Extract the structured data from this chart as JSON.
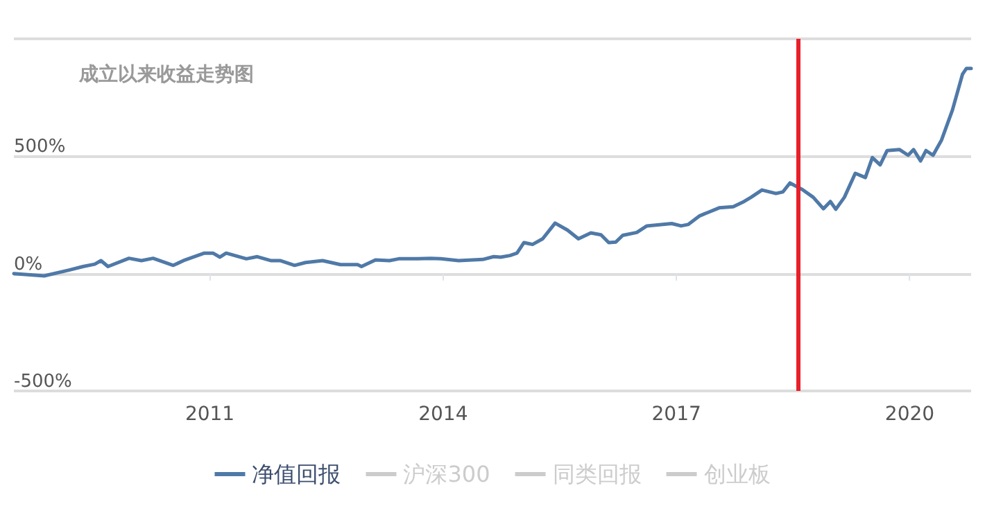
{
  "chart_data": {
    "type": "line",
    "title": "成立以来收益走势图",
    "x": [
      2008.48,
      2008.87,
      2009.19,
      2009.37,
      2009.52,
      2009.6,
      2009.69,
      2009.96,
      2010.12,
      2010.27,
      2010.53,
      2010.68,
      2010.93,
      2011.04,
      2011.13,
      2011.21,
      2011.47,
      2011.61,
      2011.79,
      2011.91,
      2012.09,
      2012.23,
      2012.45,
      2012.68,
      2012.9,
      2012.95,
      2013.13,
      2013.31,
      2013.43,
      2013.67,
      2013.84,
      2013.97,
      2014.2,
      2014.51,
      2014.65,
      2014.74,
      2014.86,
      2014.95,
      2015.04,
      2015.15,
      2015.28,
      2015.44,
      2015.6,
      2015.74,
      2015.9,
      2016.03,
      2016.13,
      2016.22,
      2016.31,
      2016.49,
      2016.62,
      2016.94,
      2017.06,
      2017.15,
      2017.3,
      2017.55,
      2017.73,
      2017.87,
      2017.96,
      2018.1,
      2018.28,
      2018.37,
      2018.46,
      2018.62,
      2018.76,
      2018.89,
      2018.98,
      2019.05,
      2019.16,
      2019.3,
      2019.43,
      2019.52,
      2019.62,
      2019.71,
      2019.87,
      2019.98,
      2020.05,
      2020.14,
      2020.21,
      2020.3,
      2020.41,
      2020.55,
      2020.68,
      2020.73,
      2020.79
    ],
    "series": [
      {
        "name": "净值回报",
        "color": "#4f79a7",
        "values": [
          0,
          -10,
          15,
          30,
          40,
          55,
          30,
          65,
          55,
          65,
          35,
          58,
          87,
          87,
          70,
          87,
          63,
          72,
          55,
          55,
          35,
          47,
          55,
          38,
          38,
          30,
          58,
          55,
          63,
          63,
          65,
          63,
          55,
          60,
          72,
          70,
          77,
          87,
          132,
          124,
          148,
          215,
          185,
          148,
          173,
          165,
          132,
          134,
          163,
          175,
          203,
          213,
          203,
          209,
          246,
          280,
          285,
          307,
          325,
          356,
          341,
          348,
          386,
          358,
          325,
          276,
          307,
          274,
          325,
          427,
          409,
          494,
          463,
          524,
          528,
          504,
          528,
          480,
          524,
          504,
          569,
          697,
          850,
          874,
          874
        ]
      },
      {
        "name": "沪深300",
        "color": "#cccccc",
        "values": [
          null,
          null,
          null,
          null,
          null,
          null,
          null,
          null,
          null,
          null,
          null,
          null,
          null,
          null,
          null,
          null,
          null,
          null,
          null,
          null,
          null,
          null,
          null,
          null,
          null,
          null,
          null,
          null,
          null,
          null,
          null,
          null,
          null,
          null,
          null,
          null,
          null,
          null,
          null,
          null,
          null,
          null,
          null,
          null,
          null,
          null,
          null,
          null,
          null,
          null,
          null,
          null,
          null,
          null,
          null,
          null,
          null,
          null,
          null,
          null,
          null,
          null,
          null,
          null,
          null,
          null,
          null,
          null,
          null,
          null,
          null,
          null,
          null,
          null,
          null,
          null,
          null,
          null,
          null,
          null,
          null,
          null,
          null,
          null,
          null
        ]
      },
      {
        "name": "同类回报",
        "color": "#cccccc",
        "values": [
          null,
          null,
          null,
          null,
          null,
          null,
          null,
          null,
          null,
          null,
          null,
          null,
          null,
          null,
          null,
          null,
          null,
          null,
          null,
          null,
          null,
          null,
          null,
          null,
          null,
          null,
          null,
          null,
          null,
          null,
          null,
          null,
          null,
          null,
          null,
          null,
          null,
          null,
          null,
          null,
          null,
          null,
          null,
          null,
          null,
          null,
          null,
          null,
          null,
          null,
          null,
          null,
          null,
          null,
          null,
          null,
          null,
          null,
          null,
          null,
          null,
          null,
          null,
          null,
          null,
          null,
          null,
          null,
          null,
          null,
          null,
          null,
          null,
          null,
          null,
          null,
          null,
          null,
          null,
          null,
          null,
          null,
          null,
          null,
          null
        ]
      },
      {
        "name": "创业板",
        "color": "#cccccc",
        "values": [
          null,
          null,
          null,
          null,
          null,
          null,
          null,
          null,
          null,
          null,
          null,
          null,
          null,
          null,
          null,
          null,
          null,
          null,
          null,
          null,
          null,
          null,
          null,
          null,
          null,
          null,
          null,
          null,
          null,
          null,
          null,
          null,
          null,
          null,
          null,
          null,
          null,
          null,
          null,
          null,
          null,
          null,
          null,
          null,
          null,
          null,
          null,
          null,
          null,
          null,
          null,
          null,
          null,
          null,
          null,
          null,
          null,
          null,
          null,
          null,
          null,
          null,
          null,
          null,
          null,
          null,
          null,
          null,
          null,
          null,
          null,
          null,
          null,
          null,
          null,
          null,
          null,
          null,
          null,
          null,
          null,
          null,
          null,
          null,
          null
        ]
      }
    ],
    "xlim": [
      2008.48,
      2020.79
    ],
    "xticks": [
      2011,
      2014,
      2017,
      2020
    ],
    "ylim": [
      -500,
      1000
    ],
    "yticks": [
      {
        "value": -500,
        "label": "-500%"
      },
      {
        "value": 0,
        "label": "0%"
      },
      {
        "value": 500,
        "label": "500%"
      },
      {
        "value": 1000,
        "label": null
      }
    ],
    "ref_lines": [
      {
        "axis": "x",
        "value": 2018.57,
        "color": "#e8202a"
      }
    ],
    "grid": "y",
    "legend": "bottom",
    "marker": "none"
  }
}
